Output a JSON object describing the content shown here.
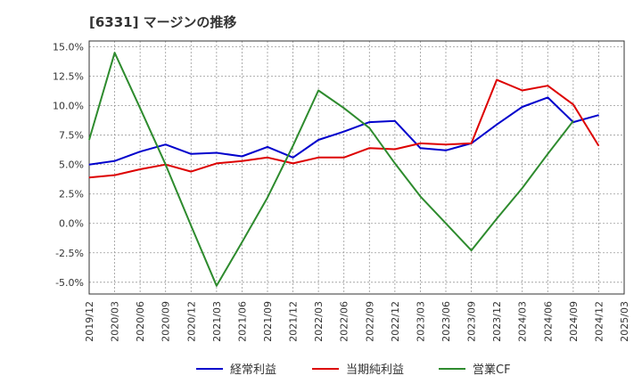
{
  "chart_data": {
    "type": "line",
    "title": "[6331]  マージンの推移",
    "x": [
      "2019/12",
      "2020/03",
      "2020/06",
      "2020/09",
      "2020/12",
      "2021/03",
      "2021/06",
      "2021/09",
      "2021/12",
      "2022/03",
      "2022/06",
      "2022/09",
      "2022/12",
      "2023/03",
      "2023/06",
      "2023/09",
      "2023/12",
      "2024/03",
      "2024/06",
      "2024/09",
      "2024/12",
      "2025/03"
    ],
    "ylim": [
      -6.0,
      15.5
    ],
    "yticks": [
      -5.0,
      -2.5,
      0.0,
      2.5,
      5.0,
      7.5,
      10.0,
      12.5,
      15.0
    ],
    "ytick_labels": [
      "-5.0%",
      "-2.5%",
      "0.0%",
      "2.5%",
      "5.0%",
      "7.5%",
      "10.0%",
      "12.5%",
      "15.0%"
    ],
    "grid": true,
    "legend_position": "bottom",
    "series": [
      {
        "name": "経常利益",
        "color": "#0000cc",
        "values": [
          5.0,
          5.3,
          6.1,
          6.7,
          5.9,
          6.0,
          5.7,
          6.5,
          5.6,
          7.1,
          7.8,
          8.6,
          8.7,
          6.4,
          6.2,
          6.8,
          8.4,
          9.9,
          10.7,
          8.6,
          9.2,
          null
        ]
      },
      {
        "name": "当期純利益",
        "color": "#dd0000",
        "values": [
          3.9,
          4.1,
          4.6,
          5.0,
          4.4,
          5.1,
          5.3,
          5.6,
          5.1,
          5.6,
          5.6,
          6.4,
          6.3,
          6.8,
          6.7,
          6.8,
          12.2,
          11.3,
          11.7,
          10.1,
          6.6,
          null
        ]
      },
      {
        "name": "営業CF",
        "color": "#2e8b2e",
        "values": [
          7.1,
          14.5,
          9.8,
          5.0,
          -0.2,
          -5.3,
          -1.6,
          2.2,
          6.6,
          11.3,
          9.8,
          8.1,
          5.1,
          2.3,
          0.0,
          -2.3,
          0.4,
          3.0,
          5.9,
          8.7,
          null,
          null
        ]
      }
    ]
  }
}
